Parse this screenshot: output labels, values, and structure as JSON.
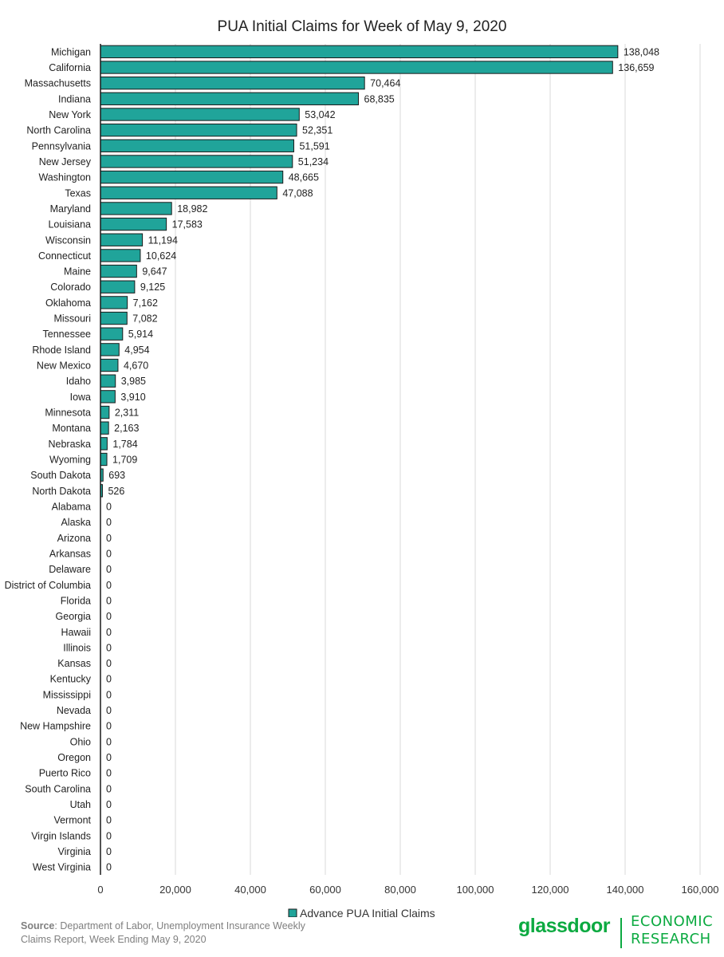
{
  "chart_data": {
    "type": "bar",
    "orientation": "horizontal",
    "title": "PUA Initial Claims for Week of May 9, 2020",
    "categories": [
      "Michigan",
      "California",
      "Massachusetts",
      "Indiana",
      "New York",
      "North Carolina",
      "Pennsylvania",
      "New Jersey",
      "Washington",
      "Texas",
      "Maryland",
      "Louisiana",
      "Wisconsin",
      "Connecticut",
      "Maine",
      "Colorado",
      "Oklahoma",
      "Missouri",
      "Tennessee",
      "Rhode Island",
      "New Mexico",
      "Idaho",
      "Iowa",
      "Minnesota",
      "Montana",
      "Nebraska",
      "Wyoming",
      "South Dakota",
      "North Dakota",
      "Alabama",
      "Alaska",
      "Arizona",
      "Arkansas",
      "Delaware",
      "District of Columbia",
      "Florida",
      "Georgia",
      "Hawaii",
      "Illinois",
      "Kansas",
      "Kentucky",
      "Mississippi",
      "Nevada",
      "New Hampshire",
      "Ohio",
      "Oregon",
      "Puerto Rico",
      "South Carolina",
      "Utah",
      "Vermont",
      "Virgin Islands",
      "Virginia",
      "West Virginia"
    ],
    "series": [
      {
        "name": "Advance PUA Initial Claims",
        "color": "#20a49a",
        "values": [
          138048,
          136659,
          70464,
          68835,
          53042,
          52351,
          51591,
          51234,
          48665,
          47088,
          18982,
          17583,
          11194,
          10624,
          9647,
          9125,
          7162,
          7082,
          5914,
          4954,
          4670,
          3985,
          3910,
          2311,
          2163,
          1784,
          1709,
          693,
          526,
          0,
          0,
          0,
          0,
          0,
          0,
          0,
          0,
          0,
          0,
          0,
          0,
          0,
          0,
          0,
          0,
          0,
          0,
          0,
          0,
          0,
          0,
          0,
          0
        ],
        "labels": [
          "138,048",
          "136,659",
          "70,464",
          "68,835",
          "53,042",
          "52,351",
          "51,591",
          "51,234",
          "48,665",
          "47,088",
          "18,982",
          "17,583",
          "11,194",
          "10,624",
          "9,647",
          "9,125",
          "7,162",
          "7,082",
          "5,914",
          "4,954",
          "4,670",
          "3,985",
          "3,910",
          "2,311",
          "2,163",
          "1,784",
          "1,709",
          "693",
          "526",
          "0",
          "0",
          "0",
          "0",
          "0",
          "0",
          "0",
          "0",
          "0",
          "0",
          "0",
          "0",
          "0",
          "0",
          "0",
          "0",
          "0",
          "0",
          "0",
          "0",
          "0",
          "0",
          "0",
          "0"
        ]
      }
    ],
    "xlim": [
      0,
      160000
    ],
    "xticks": [
      0,
      20000,
      40000,
      60000,
      80000,
      100000,
      120000,
      140000,
      160000
    ],
    "xtick_labels": [
      "0",
      "20,000",
      "40,000",
      "60,000",
      "80,000",
      "100,000",
      "120,000",
      "140,000",
      "160,000"
    ],
    "grid": true,
    "legend": "bottom-center"
  },
  "footer": {
    "source_label": "Source",
    "source_text": ": Department of Labor, Unemployment Insurance Weekly Claims Report, Week Ending May 9, 2020"
  },
  "branding": {
    "name": "glassdoor",
    "line1": "ECONOMIC",
    "line2": "RESEARCH",
    "color": "#0caa41"
  }
}
